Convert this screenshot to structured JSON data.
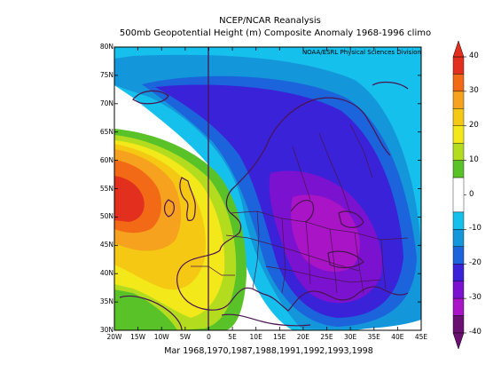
{
  "header": {
    "title": "NCEP/NCAR Reanalysis",
    "subtitle": "500mb Geopotential Height (m) Composite Anomaly 1968-1996 climo"
  },
  "credit": "NOAA/ESRL Physical Sciences Division",
  "caption": "Mar 1968,1970,1987,1988,1991,1992,1993,1998",
  "latitude_ticks": [
    "80N",
    "75N",
    "70N",
    "65N",
    "60N",
    "55N",
    "50N",
    "45N",
    "40N",
    "35N",
    "30N"
  ],
  "longitude_ticks": [
    "20W",
    "15W",
    "10W",
    "5W",
    "0",
    "5E",
    "10E",
    "15E",
    "20E",
    "25E",
    "30E",
    "35E",
    "40E",
    "45E"
  ],
  "map_extent": {
    "lon_min": -20,
    "lon_max": 45,
    "lat_min": 30,
    "lat_max": 80
  },
  "colorbar": {
    "labels": [
      "40",
      "30",
      "20",
      "10",
      "0",
      "-10",
      "-20",
      "-30",
      "-40"
    ],
    "levels": [
      {
        "min": 35,
        "max": 40,
        "color": "#e3301e"
      },
      {
        "min": 30,
        "max": 35,
        "color": "#f26a16"
      },
      {
        "min": 25,
        "max": 30,
        "color": "#f7a21e"
      },
      {
        "min": 20,
        "max": 25,
        "color": "#f5c814"
      },
      {
        "min": 15,
        "max": 20,
        "color": "#f3e81a"
      },
      {
        "min": 10,
        "max": 15,
        "color": "#b4dc1e"
      },
      {
        "min": 5,
        "max": 10,
        "color": "#58c228"
      },
      {
        "min": -5,
        "max": 5,
        "color": "#ffffff"
      },
      {
        "min": -10,
        "max": -5,
        "color": "#16c0ec"
      },
      {
        "min": -15,
        "max": -10,
        "color": "#1496da"
      },
      {
        "min": -20,
        "max": -15,
        "color": "#1c64dc"
      },
      {
        "min": -25,
        "max": -20,
        "color": "#3a22d8"
      },
      {
        "min": -30,
        "max": -25,
        "color": "#7a12d0"
      },
      {
        "min": -35,
        "max": -30,
        "color": "#a814c6"
      },
      {
        "min": -40,
        "max": -35,
        "color": "#6a1070"
      }
    ]
  },
  "colors": {
    "border": "#4a1450",
    "frame": "#000000"
  }
}
